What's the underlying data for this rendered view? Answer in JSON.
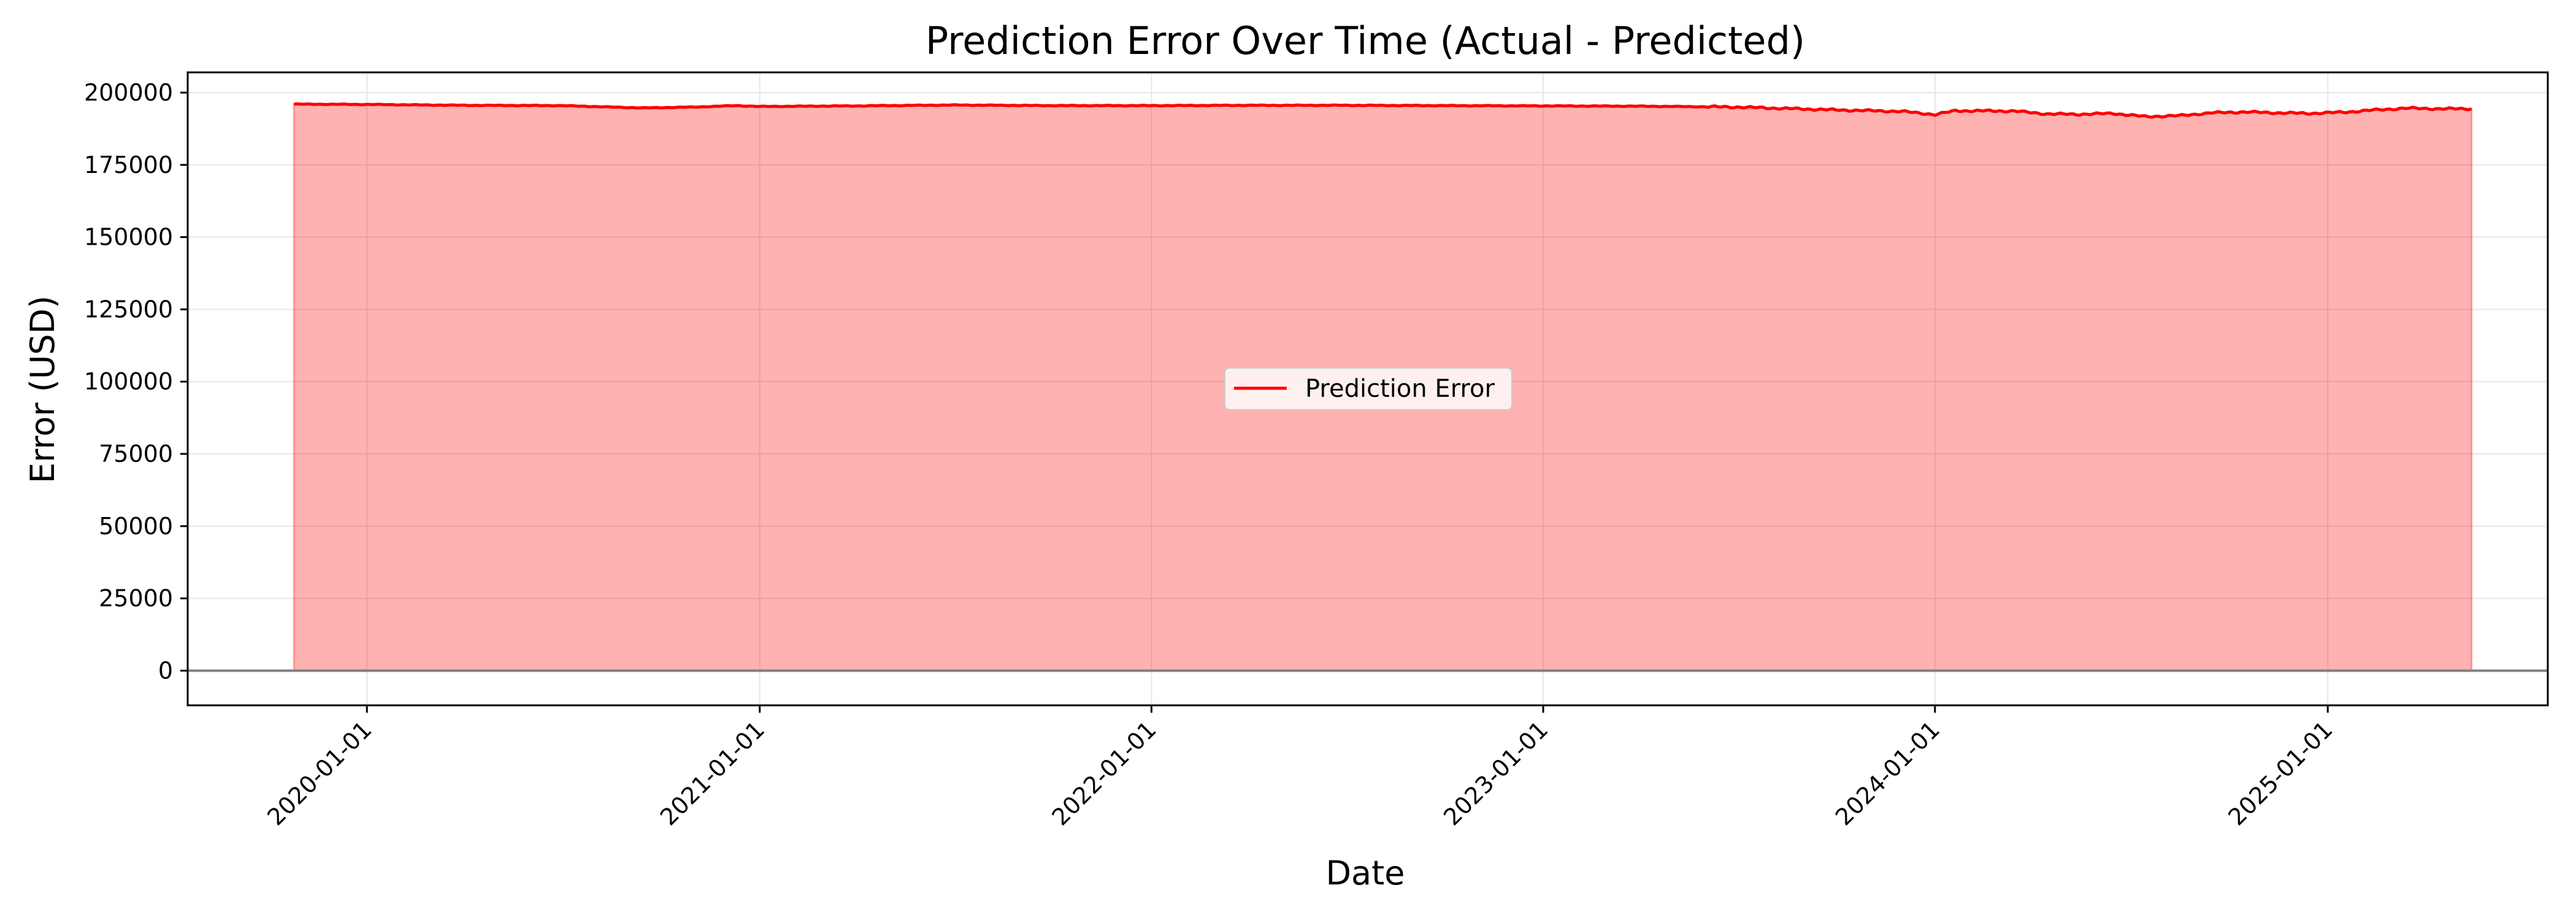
{
  "chart_data": {
    "type": "area",
    "title": "Prediction Error Over Time (Actual - Predicted)",
    "xlabel": "Date",
    "ylabel": "Error (USD)",
    "x_axis_type": "date",
    "xlim": [
      "2019-07-18",
      "2025-07-25"
    ],
    "ylim": [
      -12000,
      207000
    ],
    "x_ticks": [
      "2020-01-01",
      "2021-01-01",
      "2022-01-01",
      "2023-01-01",
      "2024-01-01",
      "2025-01-01"
    ],
    "y_ticks": [
      0,
      25000,
      50000,
      75000,
      100000,
      125000,
      150000,
      175000,
      200000
    ],
    "grid": true,
    "legend": {
      "location": "center",
      "entries": [
        "Prediction Error"
      ]
    },
    "reference_line": {
      "y": 0,
      "color": "#808080"
    },
    "series": [
      {
        "name": "Prediction Error",
        "color": "#ff0000",
        "fill_color": "#ff0000",
        "fill_opacity": 0.3,
        "x": [
          "2019-10-25",
          "2020-01-01",
          "2020-04-01",
          "2020-07-01",
          "2020-08-15",
          "2020-09-15",
          "2020-11-01",
          "2020-12-10",
          "2021-01-01",
          "2021-04-01",
          "2021-07-01",
          "2021-10-01",
          "2022-01-01",
          "2022-04-01",
          "2022-07-01",
          "2022-10-01",
          "2023-01-01",
          "2023-04-01",
          "2023-07-01",
          "2023-08-15",
          "2023-10-01",
          "2023-12-01",
          "2024-01-01",
          "2024-01-20",
          "2024-02-15",
          "2024-03-15",
          "2024-04-15",
          "2024-05-15",
          "2024-06-15",
          "2024-07-15",
          "2024-08-15",
          "2024-09-15",
          "2024-10-15",
          "2024-11-15",
          "2024-12-15",
          "2025-01-15",
          "2025-02-15",
          "2025-03-15",
          "2025-04-15",
          "2025-05-15"
        ],
        "y": [
          196000,
          195900,
          195600,
          195500,
          195000,
          194700,
          195000,
          195500,
          195200,
          195400,
          195700,
          195500,
          195500,
          195600,
          195600,
          195500,
          195400,
          195300,
          195000,
          194500,
          194000,
          193500,
          192400,
          193700,
          193700,
          193600,
          192600,
          192500,
          192800,
          191700,
          192000,
          193000,
          193300,
          193000,
          192800,
          193200,
          194000,
          194600,
          194400,
          194400
        ]
      }
    ]
  }
}
